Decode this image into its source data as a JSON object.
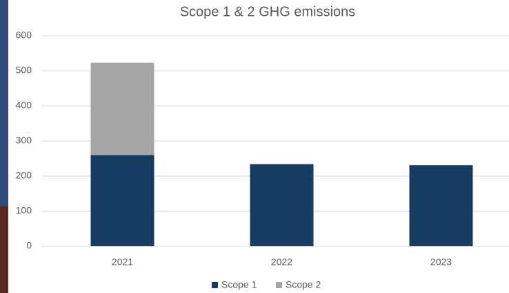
{
  "chart_data": {
    "type": "stacked-bar",
    "title": "Scope 1 & 2 GHG emissions",
    "categories": [
      "2021",
      "2022",
      "2023"
    ],
    "series": [
      {
        "name": "Scope 1",
        "color": "#173c64",
        "values": [
          260,
          234,
          231
        ]
      },
      {
        "name": "Scope 2",
        "color": "#a5a5a5",
        "values": [
          263,
          0,
          0
        ]
      }
    ],
    "ylim": [
      0,
      600
    ],
    "yticks": [
      0,
      100,
      200,
      300,
      400,
      500,
      600
    ],
    "grid": true,
    "legend": "bottom"
  }
}
